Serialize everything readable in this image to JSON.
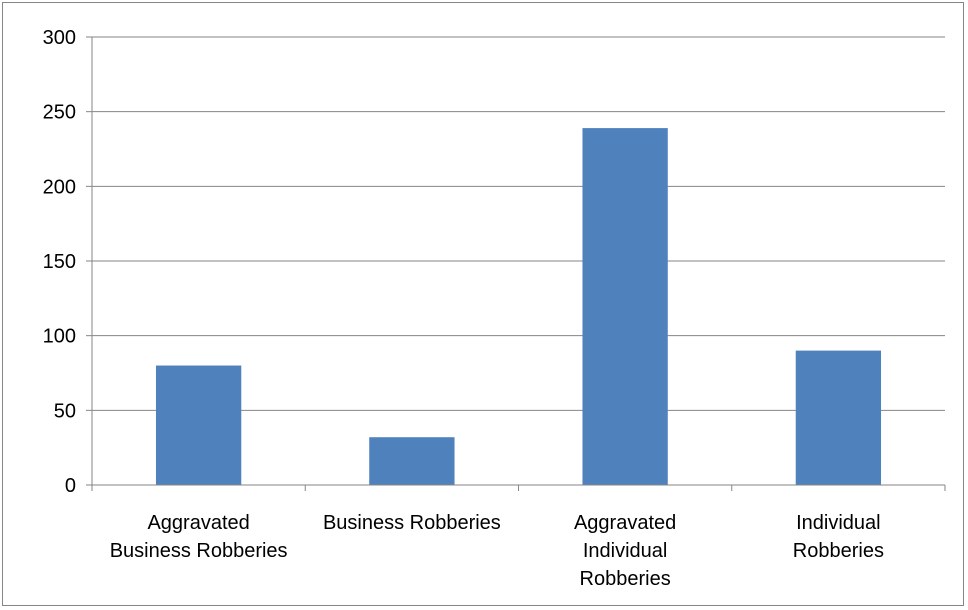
{
  "chart_data": {
    "type": "bar",
    "categories": [
      [
        "Aggravated",
        "Business Robberies"
      ],
      [
        "Business Robberies"
      ],
      [
        "Aggravated",
        "Individual",
        "Robberies"
      ],
      [
        "Individual",
        "Robberies"
      ]
    ],
    "values": [
      80,
      32,
      239,
      90
    ],
    "ylim": [
      0,
      300
    ],
    "yticks": [
      0,
      50,
      100,
      150,
      200,
      250,
      300
    ],
    "grid": true,
    "legend": "none",
    "title": "",
    "xlabel": "",
    "ylabel": "",
    "colors": {
      "bar": "#4f81bd",
      "grid": "#868686",
      "axis": "#868686"
    }
  }
}
